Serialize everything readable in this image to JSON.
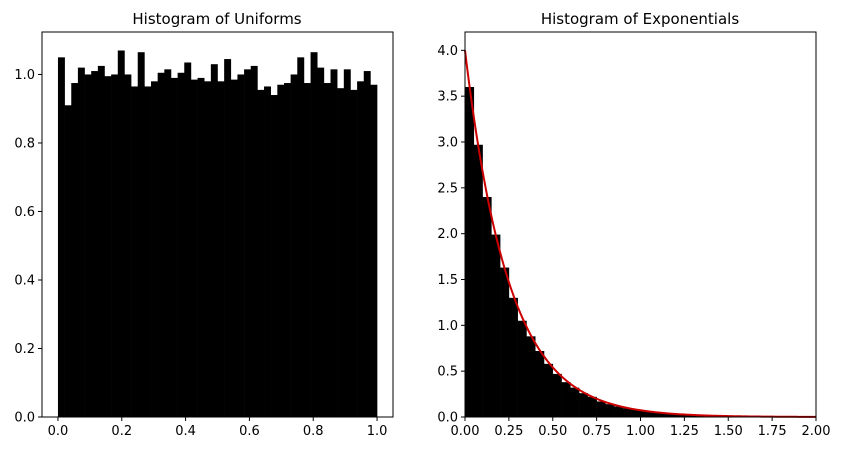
{
  "chart_data": [
    {
      "type": "bar",
      "title": "Histogram of Uniforms",
      "xlabel": "",
      "ylabel": "",
      "xlim": [
        -0.05,
        1.05
      ],
      "ylim": [
        0,
        1.124
      ],
      "xticks": [
        0.0,
        0.2,
        0.4,
        0.6,
        0.8,
        1.0
      ],
      "xtick_labels": [
        "0.0",
        "0.2",
        "0.4",
        "0.6",
        "0.8",
        "1.0"
      ],
      "yticks": [
        0.0,
        0.2,
        0.4,
        0.6,
        0.8,
        1.0
      ],
      "ytick_labels": [
        "0.0",
        "0.2",
        "0.4",
        "0.6",
        "0.8",
        "1.0"
      ],
      "grid": false,
      "bar_color": "#000000",
      "bin_edges": [
        0.0,
        1.0
      ],
      "values": [
        1.05,
        0.91,
        0.975,
        1.02,
        1.0,
        1.01,
        1.025,
        0.995,
        1.0,
        1.07,
        1.0,
        0.965,
        1.065,
        0.965,
        0.98,
        1.005,
        1.015,
        0.99,
        1.005,
        1.035,
        0.985,
        0.99,
        0.98,
        1.03,
        0.98,
        1.045,
        0.985,
        1.0,
        1.015,
        1.025,
        0.955,
        0.965,
        0.94,
        0.97,
        0.975,
        1.0,
        1.05,
        0.975,
        1.065,
        1.02,
        0.975,
        1.015,
        0.96,
        1.015,
        0.955,
        0.98,
        1.01,
        0.97
      ]
    },
    {
      "type": "bar",
      "title": "Histogram of Exponentials",
      "xlabel": "",
      "ylabel": "",
      "xlim": [
        0,
        2.0
      ],
      "ylim": [
        0,
        4.2
      ],
      "xticks": [
        0.0,
        0.25,
        0.5,
        0.75,
        1.0,
        1.25,
        1.5,
        1.75,
        2.0
      ],
      "xtick_labels": [
        "0.00",
        "0.25",
        "0.50",
        "0.75",
        "1.00",
        "1.25",
        "1.50",
        "1.75",
        "2.00"
      ],
      "yticks": [
        0.0,
        0.5,
        1.0,
        1.5,
        2.0,
        2.5,
        3.0,
        3.5,
        4.0
      ],
      "ytick_labels": [
        "0.0",
        "0.5",
        "1.0",
        "1.5",
        "2.0",
        "2.5",
        "3.0",
        "3.5",
        "4.0"
      ],
      "grid": false,
      "bar_color": "#000000",
      "line_color": "#cc0000",
      "bin_edges": [
        0.0,
        2.0
      ],
      "values": [
        3.6,
        2.97,
        2.4,
        1.99,
        1.63,
        1.3,
        1.05,
        0.88,
        0.72,
        0.58,
        0.47,
        0.38,
        0.32,
        0.26,
        0.22,
        0.17,
        0.14,
        0.115,
        0.095,
        0.08,
        0.065,
        0.055,
        0.045,
        0.035,
        0.03,
        0.025,
        0.02,
        0.017,
        0.014,
        0.012,
        0.01,
        0.008,
        0.007,
        0.006,
        0.005,
        0.004,
        0.0035,
        0.003,
        0.0025,
        0.002
      ],
      "curve": {
        "type": "line",
        "rate": 4.0,
        "x_range": [
          0.0,
          2.0
        ]
      }
    }
  ]
}
